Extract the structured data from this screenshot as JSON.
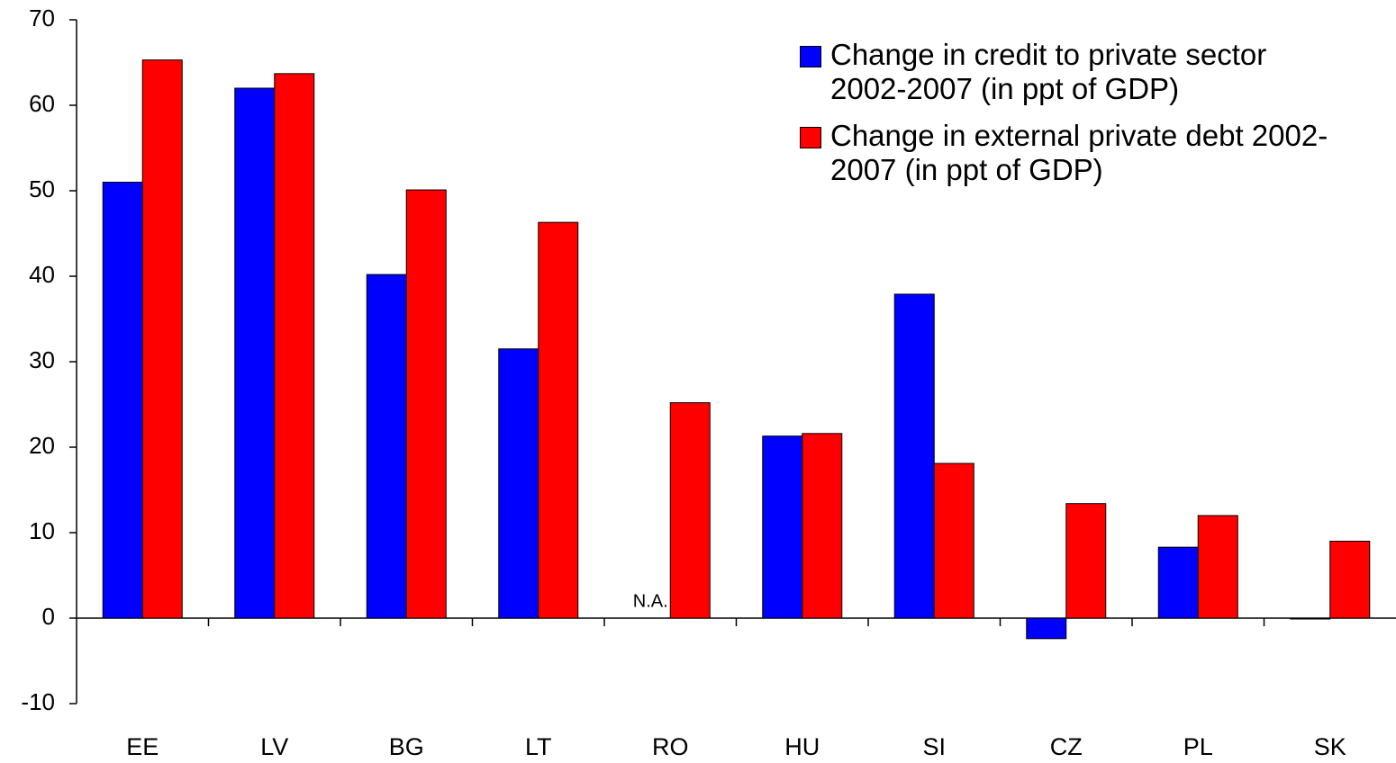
{
  "chart_data": {
    "type": "bar",
    "categories": [
      "EE",
      "LV",
      "BG",
      "LT",
      "RO",
      "HU",
      "SI",
      "CZ",
      "PL",
      "SK"
    ],
    "series": [
      {
        "name": "Change in credit to private sector 2002-2007 (in ppt of GDP)",
        "color": "#0000ff",
        "values": [
          51,
          62,
          40.2,
          31.5,
          null,
          21.3,
          37.9,
          -2.4,
          8.3,
          -0.1
        ],
        "value_labels": [
          null,
          null,
          null,
          null,
          "N.A.",
          null,
          null,
          null,
          null,
          null
        ]
      },
      {
        "name": "Change in external private debt 2002-2007 (in ppt of GDP)",
        "color": "#ff0000",
        "values": [
          65.3,
          63.7,
          50.1,
          46.3,
          25.2,
          21.6,
          18.1,
          13.4,
          12,
          9
        ]
      }
    ],
    "ylim": [
      -10,
      70
    ],
    "yticks": [
      -10,
      0,
      10,
      20,
      30,
      40,
      50,
      60,
      70
    ],
    "grid": false,
    "legend": "top-right"
  }
}
